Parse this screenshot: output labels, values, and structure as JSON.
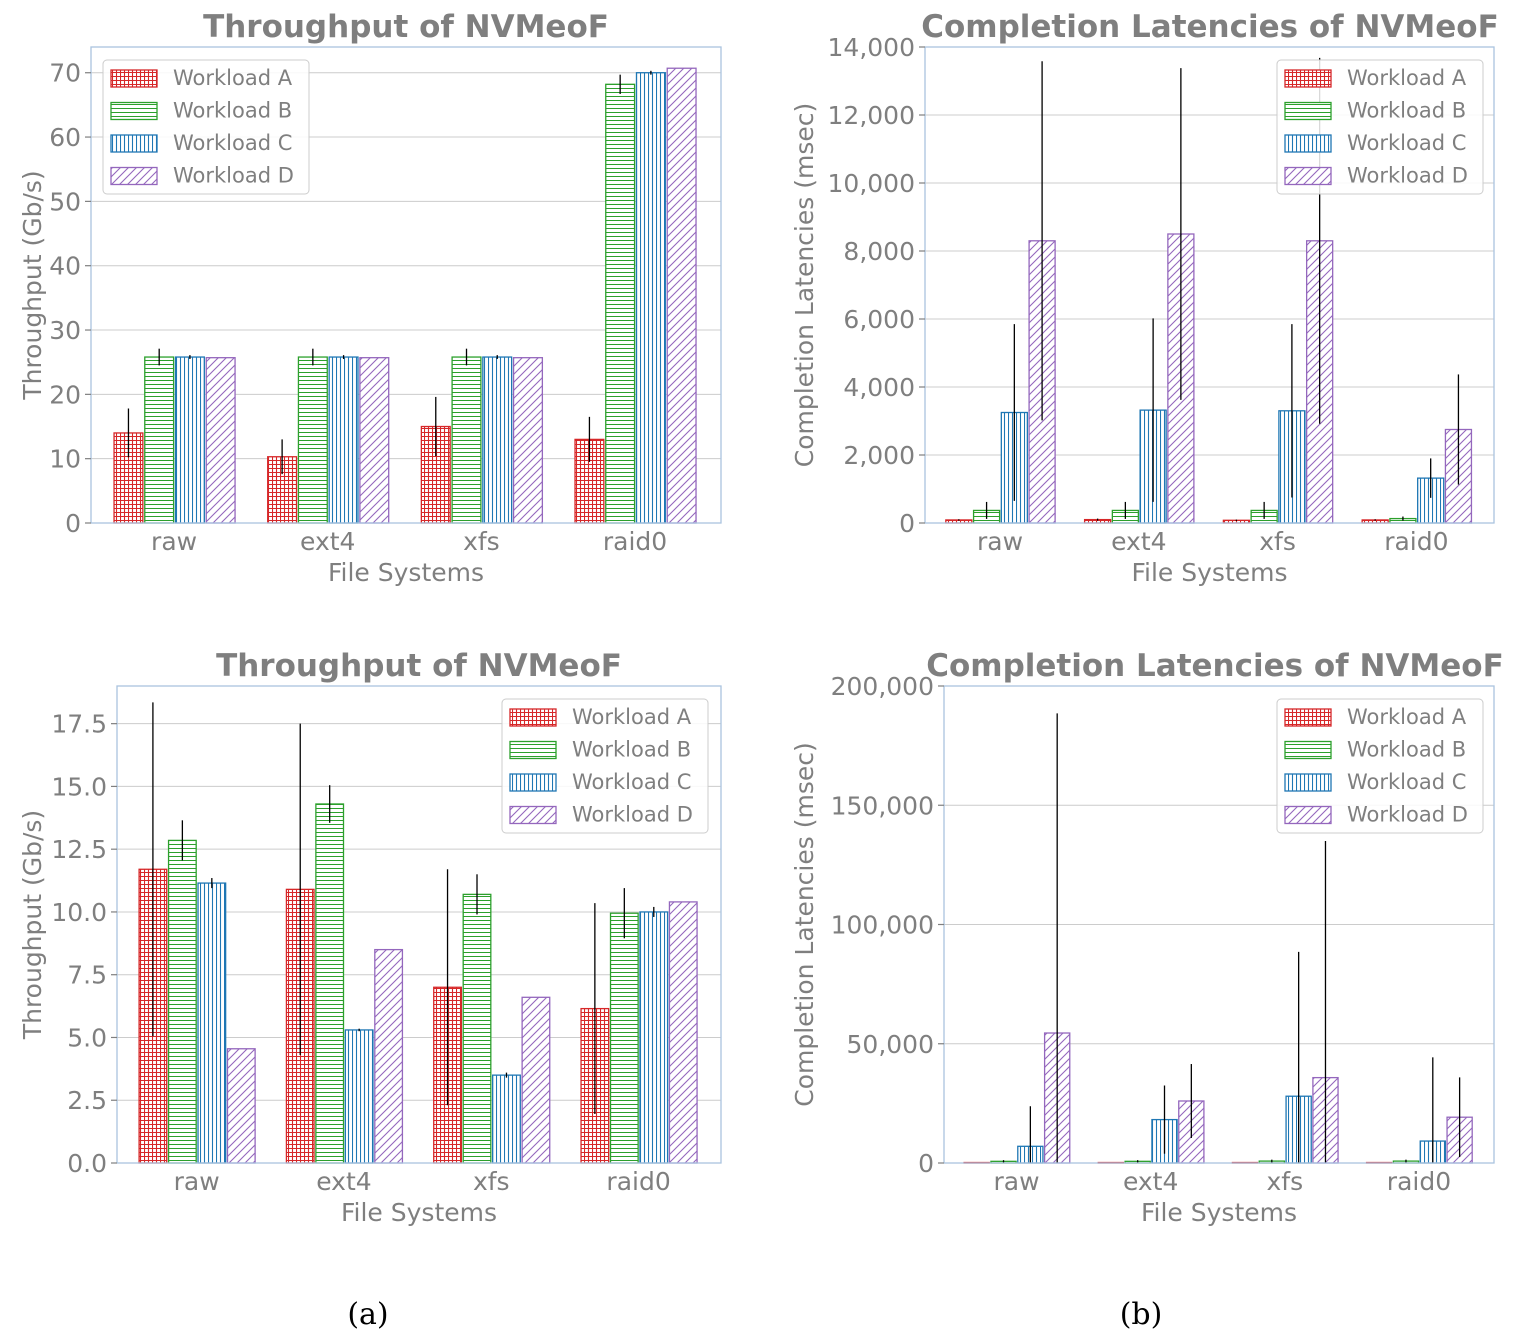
{
  "figure": {
    "caption_a": "(a)",
    "caption_b": "(b)",
    "colors": {
      "text": "#7f7f7f",
      "grid": "#cccccc",
      "axes_frame": "#aac4df",
      "error_bar": "#000000",
      "workload_a": "#d62728",
      "workload_b": "#2ca02c",
      "workload_c": "#1f77b4",
      "workload_d": "#9467bd"
    },
    "patterns": {
      "Workload A": "grid-hatch",
      "Workload B": "horizontal-hatch",
      "Workload C": "vertical-hatch",
      "Workload D": "diagonal-hatch"
    }
  },
  "chart_data": [
    {
      "type": "bar",
      "title": "Throughput of NVMeoF",
      "xlabel": "File Systems",
      "ylabel": "Throughput (Gb/s)",
      "categories": [
        "raw",
        "ext4",
        "xfs",
        "raid0"
      ],
      "ylim": [
        0,
        74
      ],
      "yticks": [
        0,
        10,
        20,
        30,
        40,
        50,
        60,
        70
      ],
      "ytick_labels": [
        "0",
        "10",
        "20",
        "30",
        "40",
        "50",
        "60",
        "70"
      ],
      "legend_position": "top-left",
      "series": [
        {
          "name": "Workload A",
          "values": [
            14.0,
            10.3,
            15.0,
            13.0
          ],
          "errors": [
            3.8,
            2.7,
            4.6,
            3.5
          ]
        },
        {
          "name": "Workload B",
          "values": [
            25.8,
            25.8,
            25.8,
            68.2
          ],
          "errors": [
            1.3,
            1.3,
            1.3,
            1.5
          ]
        },
        {
          "name": "Workload C",
          "values": [
            25.8,
            25.8,
            25.8,
            70.0
          ],
          "errors": [
            0.3,
            0.3,
            0.3,
            0.3
          ]
        },
        {
          "name": "Workload D",
          "values": [
            25.7,
            25.7,
            25.7,
            70.7
          ],
          "errors": [
            0,
            0,
            0,
            0
          ]
        }
      ]
    },
    {
      "type": "bar",
      "title": "Completion Latencies of NVMeoF",
      "xlabel": "File Systems",
      "ylabel": "Completion Latencies (msec)",
      "categories": [
        "raw",
        "ext4",
        "xfs",
        "raid0"
      ],
      "ylim": [
        0,
        14000
      ],
      "yticks": [
        0,
        2000,
        4000,
        6000,
        8000,
        10000,
        12000,
        14000
      ],
      "ytick_labels": [
        "0",
        "2,000",
        "4,000",
        "6,000",
        "8,000",
        "10,000",
        "12,000",
        "14,000"
      ],
      "legend_position": "top-right",
      "series": [
        {
          "name": "Workload A",
          "values": [
            90,
            100,
            80,
            90
          ],
          "errors": [
            20,
            30,
            20,
            20
          ]
        },
        {
          "name": "Workload B",
          "values": [
            370,
            370,
            370,
            130
          ],
          "errors": [
            250,
            250,
            250,
            60
          ]
        },
        {
          "name": "Workload C",
          "values": [
            3250,
            3320,
            3300,
            1320
          ],
          "errors": [
            2600,
            2700,
            2550,
            580
          ]
        },
        {
          "name": "Workload D",
          "values": [
            8300,
            8500,
            8300,
            2750
          ],
          "errors": [
            5280,
            4880,
            5380,
            1620
          ]
        }
      ]
    },
    {
      "type": "bar",
      "title": "Throughput of NVMeoF",
      "xlabel": "File Systems",
      "ylabel": "Throughput (Gb/s)",
      "categories": [
        "raw",
        "ext4",
        "xfs",
        "raid0"
      ],
      "ylim": [
        0,
        19
      ],
      "yticks": [
        0,
        2.5,
        5,
        7.5,
        10,
        12.5,
        15,
        17.5
      ],
      "ytick_labels": [
        "0.0",
        "2.5",
        "5.0",
        "7.5",
        "10.0",
        "12.5",
        "15.0",
        "17.5"
      ],
      "legend_position": "top-right",
      "series": [
        {
          "name": "Workload A",
          "values": [
            11.7,
            10.9,
            7.0,
            6.15
          ],
          "errors": [
            6.65,
            6.6,
            4.7,
            4.2
          ]
        },
        {
          "name": "Workload B",
          "values": [
            12.85,
            14.3,
            10.7,
            9.95
          ],
          "errors": [
            0.8,
            0.75,
            0.8,
            1.0
          ]
        },
        {
          "name": "Workload C",
          "values": [
            11.15,
            5.3,
            3.5,
            10.0
          ],
          "errors": [
            0.2,
            0.05,
            0.1,
            0.2
          ]
        },
        {
          "name": "Workload D",
          "values": [
            4.55,
            8.5,
            6.6,
            10.4
          ],
          "errors": [
            0,
            0,
            0,
            0
          ]
        }
      ]
    },
    {
      "type": "bar",
      "title": "Completion Latencies of NVMeoF",
      "xlabel": "File Systems",
      "ylabel": "Completion Latencies (msec)",
      "categories": [
        "raw",
        "ext4",
        "xfs",
        "raid0"
      ],
      "ylim": [
        0,
        200000
      ],
      "yticks": [
        0,
        50000,
        100000,
        150000,
        200000
      ],
      "ytick_labels": [
        "0",
        "50,000",
        "100,000",
        "150,000",
        "200,000"
      ],
      "legend_position": "top-right",
      "series": [
        {
          "name": "Workload A",
          "values": [
            200,
            200,
            200,
            200
          ],
          "errors": [
            0,
            0,
            0,
            0
          ]
        },
        {
          "name": "Workload B",
          "values": [
            700,
            700,
            800,
            800
          ],
          "errors": [
            500,
            500,
            600,
            600
          ]
        },
        {
          "name": "Workload C",
          "values": [
            7000,
            18200,
            28000,
            9200
          ],
          "errors": [
            16800,
            14300,
            60500,
            35100
          ]
        },
        {
          "name": "Workload D",
          "values": [
            54500,
            26000,
            35800,
            19200
          ],
          "errors": [
            134000,
            15500,
            99200,
            16700
          ]
        }
      ]
    }
  ]
}
